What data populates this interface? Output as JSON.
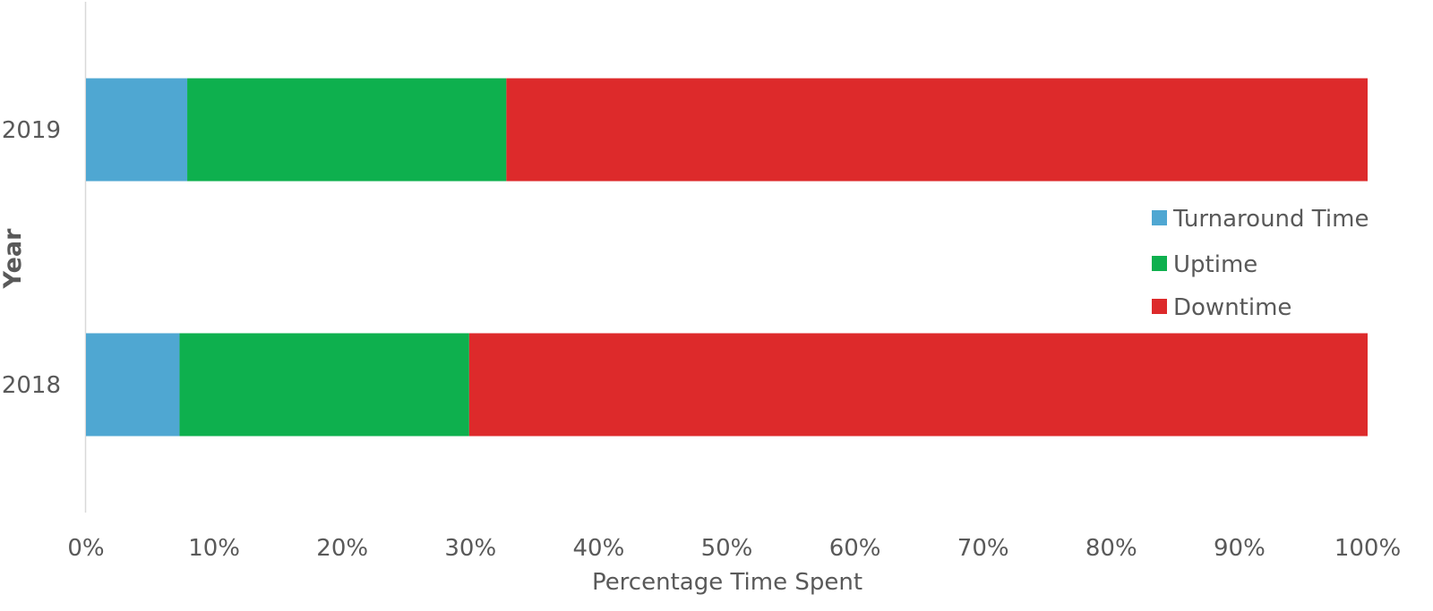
{
  "chart_data": {
    "type": "bar",
    "orientation": "horizontal",
    "stacked": "percent",
    "categories": [
      "2018",
      "2019"
    ],
    "series": [
      {
        "name": "Turnaround Time",
        "color": "#4fa7d2",
        "values": [
          7.3,
          7.9
        ]
      },
      {
        "name": "Uptime",
        "color": "#0eb04e",
        "values": [
          22.6,
          24.9
        ]
      },
      {
        "name": "Downtime",
        "color": "#dd2a2b",
        "values": [
          70.1,
          67.2
        ]
      }
    ],
    "xlabel": "Percentage Time Spent",
    "ylabel": "Year",
    "xlim": [
      0,
      100
    ],
    "x_ticks": [
      "0%",
      "10%",
      "20%",
      "30%",
      "40%",
      "50%",
      "60%",
      "70%",
      "80%",
      "90%",
      "100%"
    ],
    "grid": false,
    "legend_position": "right"
  }
}
